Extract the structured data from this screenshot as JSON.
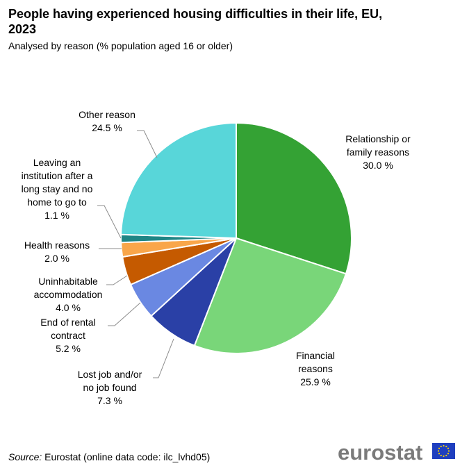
{
  "chart_data": {
    "type": "pie",
    "title": "People having experienced housing difficulties in their life, EU, 2023",
    "subtitle": "Analysed by reason (% population aged 16 or older)",
    "unit": "%",
    "slices": [
      {
        "key": "relationship",
        "label": "Relationship or family reasons",
        "label_lines": [
          "Relationship  or",
          "family reasons"
        ],
        "value": 30.0,
        "value_text": "30.0 %",
        "color": "#34a234"
      },
      {
        "key": "financial",
        "label": "Financial reasons",
        "label_lines": [
          "Financial",
          "reasons"
        ],
        "value": 25.9,
        "value_text": "25.9 %",
        "color": "#79d679"
      },
      {
        "key": "lost-job",
        "label": "Lost job and/or no job found",
        "label_lines": [
          "Lost job and/or",
          "no job found"
        ],
        "value": 7.3,
        "value_text": "7.3 %",
        "color": "#2a40a6"
      },
      {
        "key": "end-rental",
        "label": "End of rental contract",
        "label_lines": [
          "End of rental",
          "contract"
        ],
        "value": 5.2,
        "value_text": "5.2 %",
        "color": "#6a88e2"
      },
      {
        "key": "uninhabitable",
        "label": "Uninhabitable accommodation",
        "label_lines": [
          "Uninhabitable",
          "accommodation"
        ],
        "value": 4.0,
        "value_text": "4.0 %",
        "color": "#c55a00"
      },
      {
        "key": "health",
        "label": "Health reasons",
        "label_lines": [
          "Health  reasons"
        ],
        "value": 2.0,
        "value_text": "2.0 %",
        "color": "#f9a64a"
      },
      {
        "key": "leaving-institution",
        "label": "Leaving an institution after a long stay and no home to go to",
        "label_lines": [
          "Leaving an",
          "institution after a",
          "long stay and no",
          "home to go to"
        ],
        "value": 1.1,
        "value_text": "1.1 %",
        "color": "#1f8585"
      },
      {
        "key": "other",
        "label": "Other reason",
        "label_lines": [
          "Other reason"
        ],
        "value": 24.5,
        "value_text": "24.5 %",
        "color": "#58d6d9"
      }
    ]
  },
  "source": {
    "label": "Source:",
    "text": "Eurostat (online data code: ilc_lvhd05)"
  },
  "logo": {
    "text": "eurostat",
    "flag_color": "#1f3fbf",
    "star_color": "#ffd200"
  }
}
